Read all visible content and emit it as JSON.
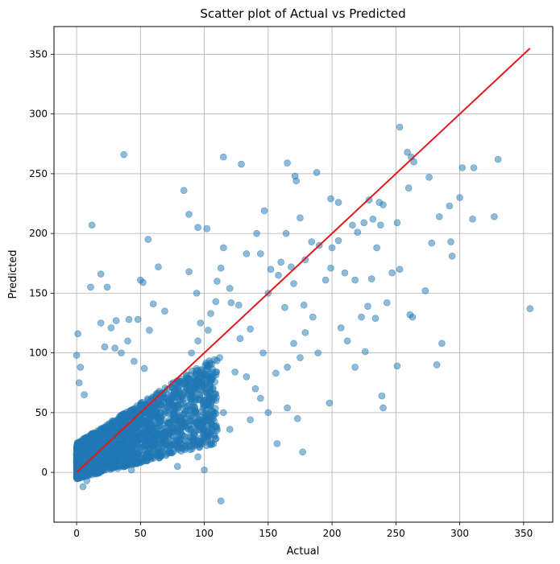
{
  "chart_data": {
    "type": "scatter",
    "title": "Scatter plot of Actual vs Predicted",
    "xlabel": "Actual",
    "ylabel": "Predicted",
    "xlim": [
      -17.7,
      372.8
    ],
    "ylim": [
      -41.7,
      373.2
    ],
    "xticks": [
      0,
      50,
      100,
      150,
      200,
      250,
      300,
      350
    ],
    "yticks": [
      0,
      50,
      100,
      150,
      200,
      250,
      300,
      350
    ],
    "grid": true,
    "colors": {
      "points": "#1f77b4",
      "reference_line": "#e31a1c",
      "grid": "#b0b0b0"
    },
    "point_alpha": 0.5,
    "reference_line": {
      "x": [
        0,
        355
      ],
      "y": [
        0,
        355
      ]
    },
    "points": [
      [
        37,
        266
      ],
      [
        115,
        264
      ],
      [
        129,
        258
      ],
      [
        165,
        259
      ],
      [
        171,
        248
      ],
      [
        172,
        244
      ],
      [
        188,
        251
      ],
      [
        84,
        236
      ],
      [
        88,
        216
      ],
      [
        95,
        205
      ],
      [
        102,
        204
      ],
      [
        12,
        207
      ],
      [
        19,
        166
      ],
      [
        11,
        155
      ],
      [
        24,
        155
      ],
      [
        253,
        289
      ],
      [
        259,
        268
      ],
      [
        262,
        264
      ],
      [
        264,
        260
      ],
      [
        260,
        238
      ],
      [
        276,
        247
      ],
      [
        302,
        255
      ],
      [
        311,
        255
      ],
      [
        330,
        262
      ],
      [
        300,
        230
      ],
      [
        292,
        223
      ],
      [
        284,
        214
      ],
      [
        310,
        212
      ],
      [
        327,
        214
      ],
      [
        251,
        209
      ],
      [
        278,
        192
      ],
      [
        293,
        193
      ],
      [
        294,
        181
      ],
      [
        273,
        152
      ],
      [
        261,
        132
      ],
      [
        263,
        130
      ],
      [
        286,
        108
      ],
      [
        282,
        90
      ],
      [
        251,
        89
      ],
      [
        239,
        64
      ],
      [
        240,
        54
      ],
      [
        355,
        137
      ],
      [
        199,
        229
      ],
      [
        205,
        226
      ],
      [
        237,
        226
      ],
      [
        240,
        224
      ],
      [
        229,
        228
      ],
      [
        232,
        212
      ],
      [
        225,
        209
      ],
      [
        238,
        207
      ],
      [
        216,
        207
      ],
      [
        220,
        201
      ],
      [
        200,
        188
      ],
      [
        205,
        194
      ],
      [
        210,
        167
      ],
      [
        199,
        171
      ],
      [
        218,
        161
      ],
      [
        231,
        162
      ],
      [
        247,
        167
      ],
      [
        253,
        170
      ],
      [
        235,
        188
      ],
      [
        243,
        142
      ],
      [
        223,
        130
      ],
      [
        228,
        139
      ],
      [
        234,
        129
      ],
      [
        207,
        121
      ],
      [
        212,
        110
      ],
      [
        226,
        101
      ],
      [
        218,
        88
      ],
      [
        198,
        58
      ],
      [
        164,
        200
      ],
      [
        175,
        213
      ],
      [
        160,
        176
      ],
      [
        168,
        172
      ],
      [
        179,
        178
      ],
      [
        184,
        193
      ],
      [
        190,
        190
      ],
      [
        158,
        165
      ],
      [
        170,
        158
      ],
      [
        147,
        219
      ],
      [
        141,
        200
      ],
      [
        133,
        183
      ],
      [
        144,
        183
      ],
      [
        152,
        170
      ],
      [
        150,
        150
      ],
      [
        163,
        138
      ],
      [
        178,
        140
      ],
      [
        185,
        130
      ],
      [
        195,
        161
      ],
      [
        179,
        117
      ],
      [
        189,
        100
      ],
      [
        170,
        108
      ],
      [
        165,
        88
      ],
      [
        175,
        96
      ],
      [
        156,
        83
      ],
      [
        146,
        100
      ],
      [
        136,
        120
      ],
      [
        127,
        140
      ],
      [
        120,
        154
      ],
      [
        115,
        188
      ],
      [
        113,
        171
      ],
      [
        110,
        160
      ],
      [
        121,
        142
      ],
      [
        109,
        143
      ],
      [
        105,
        133
      ],
      [
        103,
        119
      ],
      [
        97,
        125
      ],
      [
        94,
        150
      ],
      [
        88,
        168
      ],
      [
        64,
        172
      ],
      [
        56,
        195
      ],
      [
        50,
        161
      ],
      [
        52,
        159
      ],
      [
        60,
        141
      ],
      [
        69,
        135
      ],
      [
        57,
        119
      ],
      [
        48,
        128
      ],
      [
        41,
        128
      ],
      [
        40,
        110
      ],
      [
        31,
        127
      ],
      [
        27,
        121
      ],
      [
        19,
        125
      ],
      [
        22,
        105
      ],
      [
        30,
        104
      ],
      [
        35,
        100
      ],
      [
        45,
        93
      ],
      [
        53,
        87
      ],
      [
        95,
        110
      ],
      [
        90,
        100
      ],
      [
        112,
        96
      ],
      [
        128,
        112
      ],
      [
        133,
        80
      ],
      [
        124,
        84
      ],
      [
        140,
        70
      ],
      [
        144,
        62
      ],
      [
        157,
        24
      ],
      [
        177,
        17
      ],
      [
        173,
        45
      ],
      [
        165,
        54
      ],
      [
        150,
        50
      ],
      [
        136,
        44
      ],
      [
        120,
        36
      ],
      [
        113,
        -24
      ],
      [
        115,
        50
      ],
      [
        106,
        40
      ],
      [
        100,
        60
      ],
      [
        80,
        65
      ],
      [
        72,
        30
      ],
      [
        64,
        20
      ],
      [
        61,
        45
      ],
      [
        95,
        13
      ],
      [
        100,
        2
      ],
      [
        79,
        5
      ],
      [
        88,
        30
      ],
      [
        55,
        10
      ],
      [
        43,
        2
      ],
      [
        32,
        5
      ],
      [
        8,
        -7
      ],
      [
        5,
        -12
      ],
      [
        1,
        116
      ],
      [
        0,
        98
      ],
      [
        3,
        88
      ],
      [
        2,
        75
      ],
      [
        6,
        65
      ]
    ]
  }
}
